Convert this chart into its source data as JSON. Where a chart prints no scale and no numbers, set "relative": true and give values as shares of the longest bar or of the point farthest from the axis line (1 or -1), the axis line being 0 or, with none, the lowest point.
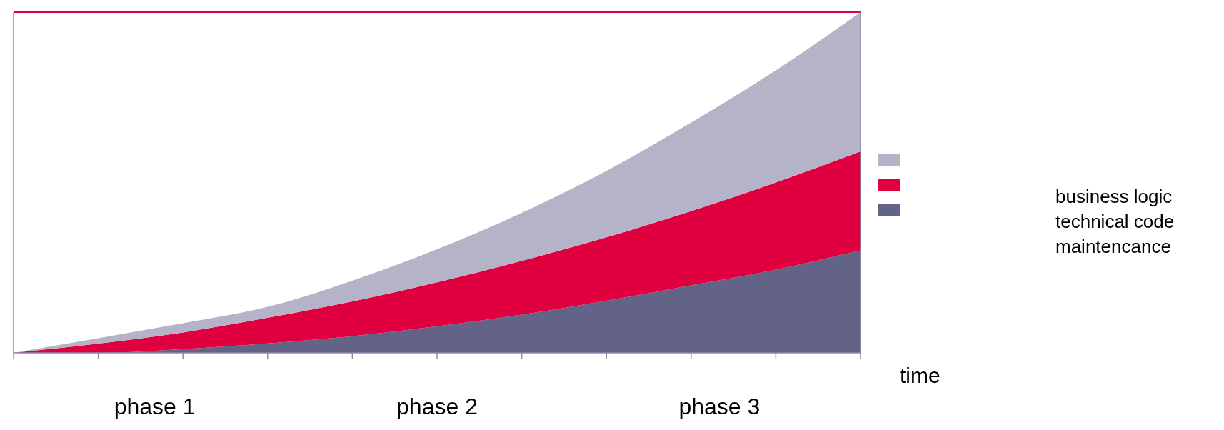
{
  "chart_data": {
    "type": "area",
    "stacked": true,
    "relative": true,
    "xlabel": "time",
    "categories": [
      null,
      null,
      null,
      null,
      null,
      null,
      null,
      null,
      null,
      null,
      null
    ],
    "series": [
      {
        "name": "maintencance",
        "color": "#636388",
        "values": [
          0,
          0,
          0.011,
          0.028,
          0.049,
          0.078,
          0.112,
          0.153,
          0.198,
          0.244,
          0.301
        ]
      },
      {
        "name": "technical code",
        "color": "#e00040",
        "values": [
          0,
          0.027,
          0.049,
          0.075,
          0.102,
          0.129,
          0.158,
          0.186,
          0.218,
          0.256,
          0.29
        ]
      },
      {
        "name": "business logic",
        "color": "#b5b3c8",
        "values": [
          0,
          0.016,
          0.027,
          0.032,
          0.061,
          0.097,
          0.141,
          0.195,
          0.26,
          0.329,
          0.409
        ]
      }
    ],
    "legend": "right",
    "annotations": [
      "phase 1",
      "phase 2",
      "phase 3"
    ]
  }
}
